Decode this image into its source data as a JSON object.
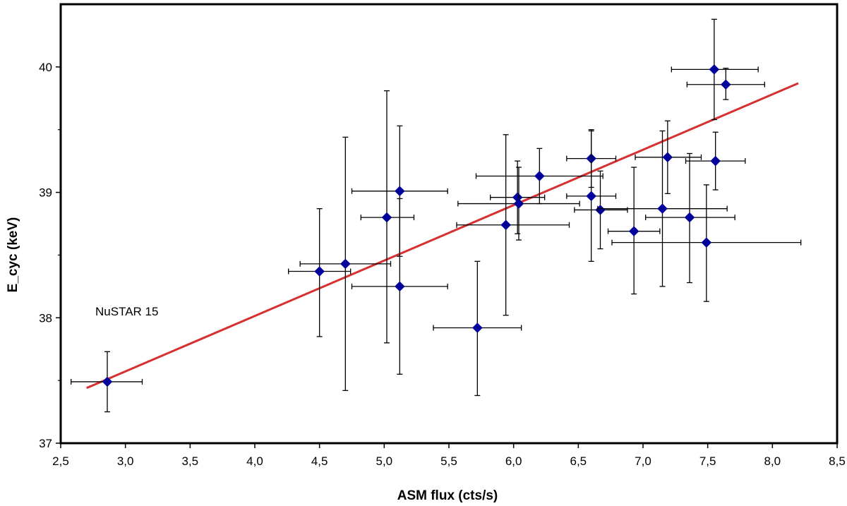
{
  "chart_data": {
    "type": "scatter",
    "xlabel": "ASM flux  (cts/s)",
    "ylabel": "E_cyc (keV)",
    "xlim": [
      2.5,
      8.5
    ],
    "ylim": [
      37,
      40.5
    ],
    "x_ticks": [
      "2,5",
      "3,0",
      "3,5",
      "4,0",
      "4,5",
      "5,0",
      "5,5",
      "6,0",
      "6,5",
      "7,0",
      "7,5",
      "8,0",
      "8,5"
    ],
    "x_tick_values": [
      2.5,
      3.0,
      3.5,
      4.0,
      4.5,
      5.0,
      5.5,
      6.0,
      6.5,
      7.0,
      7.5,
      8.0,
      8.5
    ],
    "y_ticks": [
      "37",
      "38",
      "39",
      "40"
    ],
    "y_tick_values": [
      37,
      38,
      39,
      40
    ],
    "y_minor_ticks": [
      37.5,
      38.5,
      39.5
    ],
    "annotation": "NuSTAR 15",
    "marker_color": "#00009b",
    "fit_color": "#d63031",
    "fit_line": {
      "x": [
        2.7,
        8.2
      ],
      "y": [
        37.44,
        39.87
      ]
    },
    "points": [
      {
        "x": 2.86,
        "y": 37.49,
        "xerr": [
          0.28,
          0.27
        ],
        "yerr": [
          0.24,
          0.24
        ]
      },
      {
        "x": 4.5,
        "y": 38.37,
        "xerr": [
          0.24,
          0.24
        ],
        "yerr": [
          0.52,
          0.5
        ]
      },
      {
        "x": 4.7,
        "y": 38.43,
        "xerr": [
          0.35,
          0.35
        ],
        "yerr": [
          1.01,
          1.01
        ]
      },
      {
        "x": 5.02,
        "y": 38.8,
        "xerr": [
          0.2,
          0.21
        ],
        "yerr": [
          1.0,
          1.01
        ]
      },
      {
        "x": 5.12,
        "y": 39.01,
        "xerr": [
          0.37,
          0.37
        ],
        "yerr": [
          0.52,
          0.52
        ]
      },
      {
        "x": 5.12,
        "y": 38.25,
        "xerr": [
          0.37,
          0.37
        ],
        "yerr": [
          0.7,
          0.7
        ]
      },
      {
        "x": 5.72,
        "y": 37.92,
        "xerr": [
          0.34,
          0.34
        ],
        "yerr": [
          0.54,
          0.53
        ]
      },
      {
        "x": 5.94,
        "y": 38.74,
        "xerr": [
          0.38,
          0.49
        ],
        "yerr": [
          0.72,
          0.72
        ]
      },
      {
        "x": 6.03,
        "y": 38.96,
        "xerr": [
          0.21,
          0.21
        ],
        "yerr": [
          0.29,
          0.29
        ]
      },
      {
        "x": 6.04,
        "y": 38.91,
        "xerr": [
          0.47,
          0.47
        ],
        "yerr": [
          0.29,
          0.29
        ]
      },
      {
        "x": 6.2,
        "y": 39.13,
        "xerr": [
          0.49,
          0.49
        ],
        "yerr": [
          0.22,
          0.22
        ]
      },
      {
        "x": 6.6,
        "y": 39.27,
        "xerr": [
          0.19,
          0.19
        ],
        "yerr": [
          0.23,
          0.23
        ]
      },
      {
        "x": 6.6,
        "y": 38.97,
        "xerr": [
          0.19,
          0.19
        ],
        "yerr": [
          0.52,
          0.52
        ]
      },
      {
        "x": 6.67,
        "y": 38.86,
        "xerr": [
          0.2,
          0.21
        ],
        "yerr": [
          0.31,
          0.31
        ]
      },
      {
        "x": 6.93,
        "y": 38.69,
        "xerr": [
          0.2,
          0.2
        ],
        "yerr": [
          0.5,
          0.51
        ]
      },
      {
        "x": 7.15,
        "y": 38.87,
        "xerr": [
          0.5,
          0.5
        ],
        "yerr": [
          0.62,
          0.62
        ]
      },
      {
        "x": 7.19,
        "y": 39.28,
        "xerr": [
          0.25,
          0.26
        ],
        "yerr": [
          0.29,
          0.29
        ]
      },
      {
        "x": 7.36,
        "y": 38.8,
        "xerr": [
          0.34,
          0.35
        ],
        "yerr": [
          0.52,
          0.51
        ]
      },
      {
        "x": 7.49,
        "y": 38.6,
        "xerr": [
          0.73,
          0.73
        ],
        "yerr": [
          0.47,
          0.46
        ]
      },
      {
        "x": 7.55,
        "y": 39.98,
        "xerr": [
          0.33,
          0.34
        ],
        "yerr": [
          0.4,
          0.4
        ]
      },
      {
        "x": 7.56,
        "y": 39.25,
        "xerr": [
          0.23,
          0.23
        ],
        "yerr": [
          0.23,
          0.23
        ]
      },
      {
        "x": 7.64,
        "y": 39.86,
        "xerr": [
          0.3,
          0.3
        ],
        "yerr": [
          0.12,
          0.13
        ]
      }
    ]
  }
}
